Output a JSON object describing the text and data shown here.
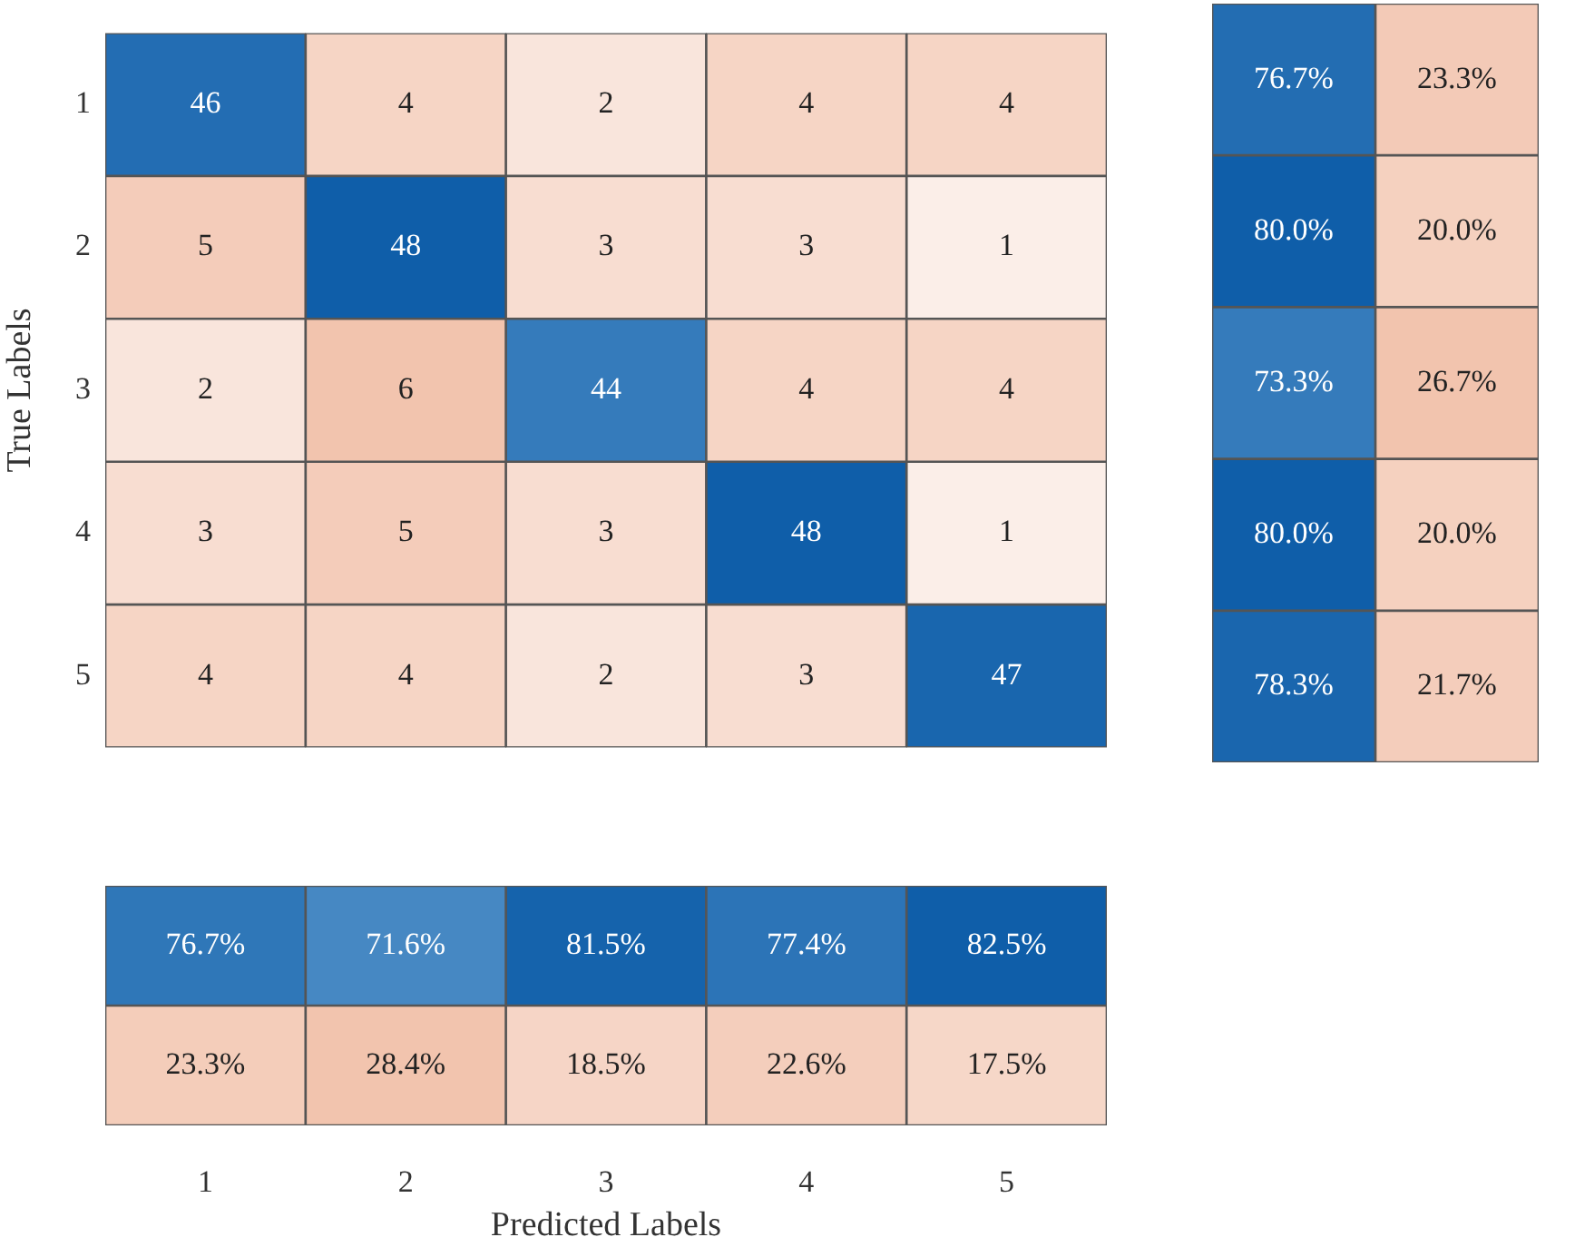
{
  "chart_data": [
    {
      "type": "heatmap",
      "ylabel": "True Labels",
      "categories": [
        "1",
        "2",
        "3",
        "4",
        "5"
      ],
      "y_categories": [
        "1",
        "2",
        "3",
        "4",
        "5"
      ],
      "cells": [
        [
          46,
          4,
          2,
          4,
          4
        ],
        [
          5,
          48,
          3,
          3,
          1
        ],
        [
          2,
          6,
          44,
          4,
          4
        ],
        [
          3,
          5,
          3,
          48,
          1
        ],
        [
          4,
          4,
          2,
          3,
          47
        ]
      ],
      "data_labels": true,
      "tick_labels": "y",
      "grid": false
    },
    {
      "type": "heatmap",
      "categories": [
        null,
        null
      ],
      "y_categories": [
        null,
        null,
        null,
        null,
        null
      ],
      "cells": [
        [
          76.7,
          23.3
        ],
        [
          80.0,
          20.0
        ],
        [
          73.3,
          26.7
        ],
        [
          80.0,
          20.0
        ],
        [
          78.3,
          21.7
        ]
      ],
      "cell_labels": [
        [
          "76.7%",
          "23.3%"
        ],
        [
          "80.0%",
          "20.0%"
        ],
        [
          "73.3%",
          "26.7%"
        ],
        [
          "80.0%",
          "20.0%"
        ],
        [
          "78.3%",
          "21.7%"
        ]
      ],
      "tick_labels": false,
      "grid": false
    },
    {
      "type": "heatmap",
      "xlabel": "Predicted Labels",
      "categories": [
        "1",
        "2",
        "3",
        "4",
        "5"
      ],
      "y_categories": [
        null,
        null
      ],
      "cells": [
        [
          76.7,
          71.6,
          81.5,
          77.4,
          82.5
        ],
        [
          23.3,
          28.4,
          18.5,
          22.6,
          17.5
        ]
      ],
      "cell_labels": [
        [
          "76.7%",
          "71.6%",
          "81.5%",
          "77.4%",
          "82.5%"
        ],
        [
          "23.3%",
          "28.4%",
          "18.5%",
          "22.6%",
          "17.5%"
        ]
      ],
      "tick_labels": "x",
      "grid": false
    }
  ]
}
